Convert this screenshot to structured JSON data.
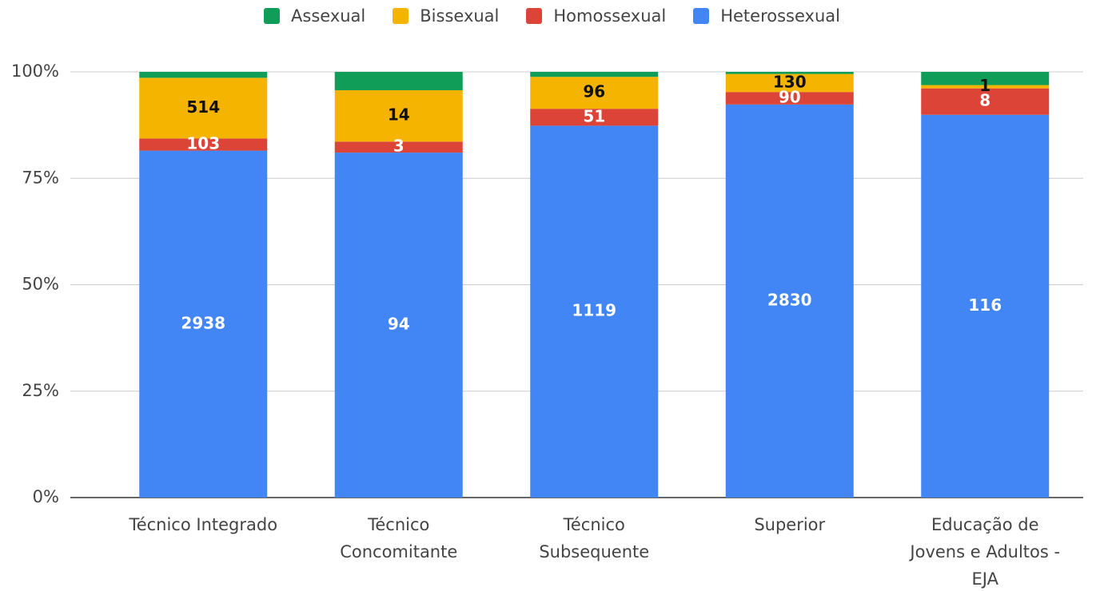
{
  "chart_data": {
    "type": "bar",
    "stacking": "percent",
    "categories": [
      "Técnico Integrado",
      "Técnico\nConcomitante",
      "Técnico\nSubsequente",
      "Superior",
      "Educação de\nJovens e Adultos -\nEJA"
    ],
    "series": [
      {
        "name": "Assexual",
        "color": "#0f9d58",
        "values": [
          50,
          5,
          15,
          15,
          4
        ],
        "data_labels": false,
        "label_color": "#ffffff"
      },
      {
        "name": "Bissexual",
        "color": "#f4b400",
        "values": [
          514,
          14,
          96,
          130,
          1
        ],
        "data_labels": true,
        "label_color": "#111111"
      },
      {
        "name": "Homossexual",
        "color": "#db4437",
        "values": [
          103,
          3,
          51,
          90,
          8
        ],
        "data_labels": true,
        "label_color": "#ffffff"
      },
      {
        "name": "Heterossexual",
        "color": "#4285f4",
        "values": [
          2938,
          94,
          1119,
          2830,
          116
        ],
        "data_labels": true,
        "label_color": "#ffffff"
      }
    ],
    "ylim": [
      0,
      100
    ],
    "yticks": [
      {
        "value": 0,
        "label": "0%"
      },
      {
        "value": 25,
        "label": "25%"
      },
      {
        "value": 50,
        "label": "50%"
      },
      {
        "value": 75,
        "label": "75%"
      },
      {
        "value": 100,
        "label": "100%"
      }
    ],
    "grid": true,
    "legend": "top"
  }
}
